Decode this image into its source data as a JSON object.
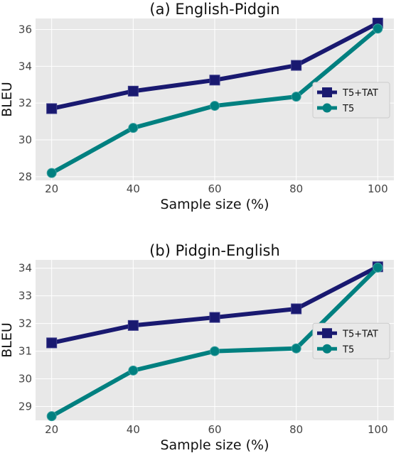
{
  "chart_data": [
    {
      "type": "line",
      "title": "(a) English-Pidgin",
      "xlabel": "Sample size (%)",
      "ylabel": "BLEU",
      "x": [
        20,
        40,
        60,
        80,
        100
      ],
      "xticks": [
        "20",
        "40",
        "60",
        "80",
        "100"
      ],
      "yticks": [
        28,
        30,
        32,
        34,
        36
      ],
      "ylim": [
        27.8,
        36.6
      ],
      "grid": true,
      "legend_position": "center-right",
      "series": [
        {
          "name": "T5+TAT",
          "color": "#191970",
          "marker": "square",
          "values": [
            31.7,
            32.65,
            33.25,
            34.05,
            36.35
          ]
        },
        {
          "name": "T5",
          "color": "#008080",
          "marker": "circle",
          "values": [
            28.2,
            30.65,
            31.85,
            32.35,
            36.05
          ]
        }
      ]
    },
    {
      "type": "line",
      "title": "(b) Pidgin-English",
      "xlabel": "Sample size (%)",
      "ylabel": "BLEU",
      "x": [
        20,
        40,
        60,
        80,
        100
      ],
      "xticks": [
        "20",
        "40",
        "60",
        "80",
        "100"
      ],
      "yticks": [
        29,
        30,
        31,
        32,
        33,
        34
      ],
      "ylim": [
        28.5,
        34.3
      ],
      "grid": true,
      "legend_position": "center-right",
      "series": [
        {
          "name": "T5+TAT",
          "color": "#191970",
          "marker": "square",
          "values": [
            31.3,
            31.93,
            32.22,
            32.53,
            34.05
          ]
        },
        {
          "name": "T5",
          "color": "#008080",
          "marker": "circle",
          "values": [
            28.65,
            30.3,
            31.0,
            31.1,
            34.02
          ]
        }
      ]
    }
  ]
}
